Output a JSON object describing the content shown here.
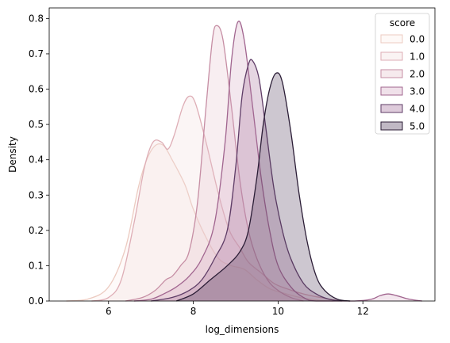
{
  "chart_data": {
    "type": "area",
    "xlabel": "log_dimensions",
    "ylabel": "Density",
    "xlim": [
      4.6,
      13.7
    ],
    "ylim": [
      0,
      0.83
    ],
    "xticks": [
      6,
      8,
      10,
      12
    ],
    "yticks": [
      0.0,
      0.1,
      0.2,
      0.3,
      0.4,
      0.5,
      0.6,
      0.7,
      0.8
    ],
    "legend": {
      "title": "score",
      "placement": "top-right"
    },
    "series": [
      {
        "name": "0.0",
        "fill": "#fbeee9",
        "stroke": "#eccbc1",
        "points": [
          [
            5.0,
            0.0
          ],
          [
            5.5,
            0.005
          ],
          [
            6.0,
            0.04
          ],
          [
            6.4,
            0.15
          ],
          [
            6.7,
            0.32
          ],
          [
            6.9,
            0.4
          ],
          [
            7.1,
            0.44
          ],
          [
            7.3,
            0.44
          ],
          [
            7.5,
            0.4
          ],
          [
            7.8,
            0.33
          ],
          [
            8.0,
            0.26
          ],
          [
            8.3,
            0.18
          ],
          [
            8.6,
            0.12
          ],
          [
            8.9,
            0.1
          ],
          [
            9.2,
            0.09
          ],
          [
            9.5,
            0.06
          ],
          [
            9.8,
            0.035
          ],
          [
            10.2,
            0.02
          ],
          [
            10.6,
            0.008
          ],
          [
            11.0,
            0.002
          ],
          [
            11.3,
            0.0
          ]
        ]
      },
      {
        "name": "1.0",
        "fill": "#f0dcdc",
        "stroke": "#deaeb6",
        "points": [
          [
            5.6,
            0.0
          ],
          [
            6.0,
            0.01
          ],
          [
            6.3,
            0.06
          ],
          [
            6.6,
            0.22
          ],
          [
            6.85,
            0.38
          ],
          [
            7.05,
            0.45
          ],
          [
            7.25,
            0.45
          ],
          [
            7.4,
            0.43
          ],
          [
            7.55,
            0.47
          ],
          [
            7.75,
            0.55
          ],
          [
            7.9,
            0.58
          ],
          [
            8.05,
            0.56
          ],
          [
            8.3,
            0.45
          ],
          [
            8.6,
            0.3
          ],
          [
            8.85,
            0.2
          ],
          [
            9.1,
            0.15
          ],
          [
            9.3,
            0.11
          ],
          [
            9.6,
            0.08
          ],
          [
            9.9,
            0.05
          ],
          [
            10.2,
            0.035
          ],
          [
            10.6,
            0.02
          ],
          [
            11.0,
            0.01
          ],
          [
            11.5,
            0.0
          ]
        ]
      },
      {
        "name": "2.0",
        "fill": "#e5c2cc",
        "stroke": "#c68ea4",
        "points": [
          [
            6.4,
            0.0
          ],
          [
            6.8,
            0.01
          ],
          [
            7.1,
            0.03
          ],
          [
            7.35,
            0.06
          ],
          [
            7.5,
            0.07
          ],
          [
            7.7,
            0.1
          ],
          [
            7.9,
            0.14
          ],
          [
            8.1,
            0.28
          ],
          [
            8.3,
            0.55
          ],
          [
            8.45,
            0.74
          ],
          [
            8.55,
            0.78
          ],
          [
            8.7,
            0.74
          ],
          [
            8.9,
            0.55
          ],
          [
            9.1,
            0.34
          ],
          [
            9.3,
            0.2
          ],
          [
            9.5,
            0.12
          ],
          [
            9.75,
            0.06
          ],
          [
            10.0,
            0.03
          ],
          [
            10.3,
            0.01
          ],
          [
            10.6,
            0.0
          ]
        ]
      },
      {
        "name": "3.0",
        "fill": "#d5a8c3",
        "stroke": "#a1658f",
        "points": [
          [
            6.6,
            0.0
          ],
          [
            7.0,
            0.005
          ],
          [
            7.3,
            0.02
          ],
          [
            7.6,
            0.04
          ],
          [
            7.9,
            0.07
          ],
          [
            8.2,
            0.12
          ],
          [
            8.5,
            0.22
          ],
          [
            8.75,
            0.45
          ],
          [
            8.9,
            0.68
          ],
          [
            9.05,
            0.79
          ],
          [
            9.2,
            0.74
          ],
          [
            9.4,
            0.55
          ],
          [
            9.6,
            0.35
          ],
          [
            9.8,
            0.2
          ],
          [
            10.0,
            0.1
          ],
          [
            10.3,
            0.04
          ],
          [
            10.6,
            0.01
          ],
          [
            10.9,
            0.0
          ],
          [
            11.8,
            0.0
          ],
          [
            12.2,
            0.005
          ],
          [
            12.4,
            0.015
          ],
          [
            12.6,
            0.02
          ],
          [
            12.8,
            0.015
          ],
          [
            13.1,
            0.005
          ],
          [
            13.4,
            0.0
          ]
        ]
      },
      {
        "name": "4.0",
        "fill": "#a06b98",
        "stroke": "#5f3d67",
        "points": [
          [
            7.0,
            0.0
          ],
          [
            7.5,
            0.01
          ],
          [
            7.9,
            0.03
          ],
          [
            8.2,
            0.06
          ],
          [
            8.5,
            0.12
          ],
          [
            8.8,
            0.2
          ],
          [
            9.0,
            0.38
          ],
          [
            9.15,
            0.58
          ],
          [
            9.3,
            0.67
          ],
          [
            9.4,
            0.68
          ],
          [
            9.55,
            0.63
          ],
          [
            9.7,
            0.5
          ],
          [
            9.9,
            0.32
          ],
          [
            10.1,
            0.2
          ],
          [
            10.3,
            0.12
          ],
          [
            10.6,
            0.05
          ],
          [
            10.9,
            0.02
          ],
          [
            11.2,
            0.005
          ],
          [
            11.5,
            0.0
          ]
        ]
      },
      {
        "name": "5.0",
        "fill": "#4a3555",
        "stroke": "#2b1d36",
        "points": [
          [
            7.6,
            0.0
          ],
          [
            8.0,
            0.02
          ],
          [
            8.4,
            0.06
          ],
          [
            8.8,
            0.1
          ],
          [
            9.1,
            0.14
          ],
          [
            9.3,
            0.2
          ],
          [
            9.5,
            0.35
          ],
          [
            9.65,
            0.5
          ],
          [
            9.8,
            0.6
          ],
          [
            9.95,
            0.645
          ],
          [
            10.1,
            0.62
          ],
          [
            10.3,
            0.48
          ],
          [
            10.5,
            0.3
          ],
          [
            10.7,
            0.16
          ],
          [
            10.9,
            0.07
          ],
          [
            11.1,
            0.03
          ],
          [
            11.4,
            0.005
          ],
          [
            11.7,
            0.0
          ]
        ]
      }
    ]
  }
}
